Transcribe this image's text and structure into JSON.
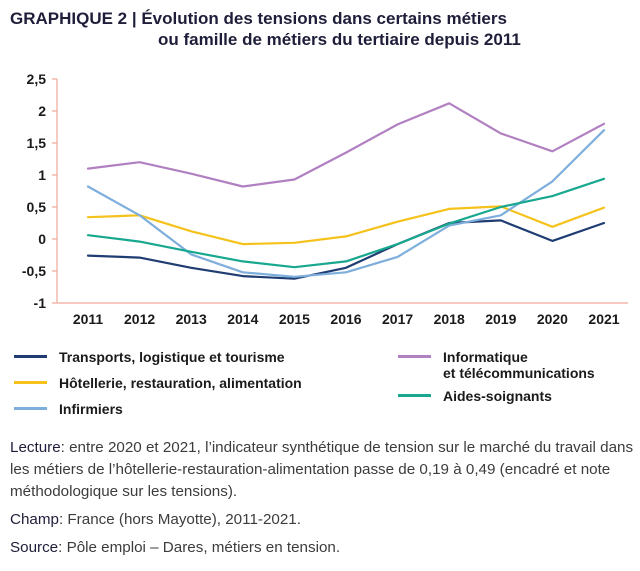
{
  "title": {
    "prefix": "GRAPHIQUE 2 | ",
    "line1": "Évolution des tensions dans certains métiers",
    "line2": "ou famille de métiers du tertiaire depuis 2011"
  },
  "chart_data": {
    "type": "line",
    "title": "Évolution des tensions dans certains métiers ou famille de métiers du tertiaire depuis 2011",
    "xlabel": "",
    "ylabel": "",
    "ylim": [
      -1,
      2.5
    ],
    "grid": false,
    "x": [
      "2011",
      "2012",
      "2013",
      "2014",
      "2015",
      "2016",
      "2017",
      "2018",
      "2019",
      "2020",
      "2021"
    ],
    "y_ticks": [
      "2,5",
      "2",
      "1,5",
      "1",
      "0,5",
      "0",
      "-0,5",
      "-1"
    ],
    "y_tick_values": [
      2.5,
      2,
      1.5,
      1,
      0.5,
      0,
      -0.5,
      -1
    ],
    "series": [
      {
        "name": "Transports, logistique et tourisme",
        "color": "#1f3d73",
        "values": [
          -0.26,
          -0.29,
          -0.45,
          -0.58,
          -0.62,
          -0.45,
          -0.08,
          0.25,
          0.29,
          -0.03,
          0.25
        ]
      },
      {
        "name": "Hôtellerie, restauration, alimentation",
        "color": "#f5c21b",
        "values": [
          0.34,
          0.37,
          0.12,
          -0.08,
          -0.06,
          0.04,
          0.27,
          0.47,
          0.51,
          0.19,
          0.49
        ]
      },
      {
        "name": "Infirmiers",
        "color": "#7eaedc",
        "values": [
          0.82,
          0.37,
          -0.24,
          -0.52,
          -0.59,
          -0.52,
          -0.28,
          0.21,
          0.37,
          0.9,
          1.7
        ]
      },
      {
        "name": "Informatique et télécommunications",
        "color": "#b180c1",
        "values": [
          1.1,
          1.2,
          1.02,
          0.82,
          0.93,
          1.35,
          1.79,
          2.12,
          1.65,
          1.37,
          1.8
        ]
      },
      {
        "name": "Aides-soignants",
        "color": "#17a88f",
        "values": [
          0.06,
          -0.04,
          -0.2,
          -0.35,
          -0.44,
          -0.35,
          -0.08,
          0.24,
          0.5,
          0.67,
          0.94
        ]
      }
    ]
  },
  "legend": {
    "transports": "Transports, logistique et tourisme",
    "hotellerie": "Hôtellerie, restauration, alimentation",
    "infirmiers": "Infirmiers",
    "informatique_l1": "Informatique",
    "informatique_l2": "et télécommunications",
    "aides": "Aides-soignants"
  },
  "notes": {
    "lecture_label": "Lecture",
    "lecture_text": ": entre 2020 et 2021, l’indicateur synthétique de tension sur le marché du travail dans les métiers de l’hôtellerie-restauration-alimentation passe de 0,19 à 0,49 (encadré et note méthodologique sur les tensions).",
    "champ_label": "Champ",
    "champ_text": ": France (hors Mayotte), 2011-2021.",
    "source_label": "Source",
    "source_text": ": Pôle emploi – Dares, métiers en tension."
  }
}
